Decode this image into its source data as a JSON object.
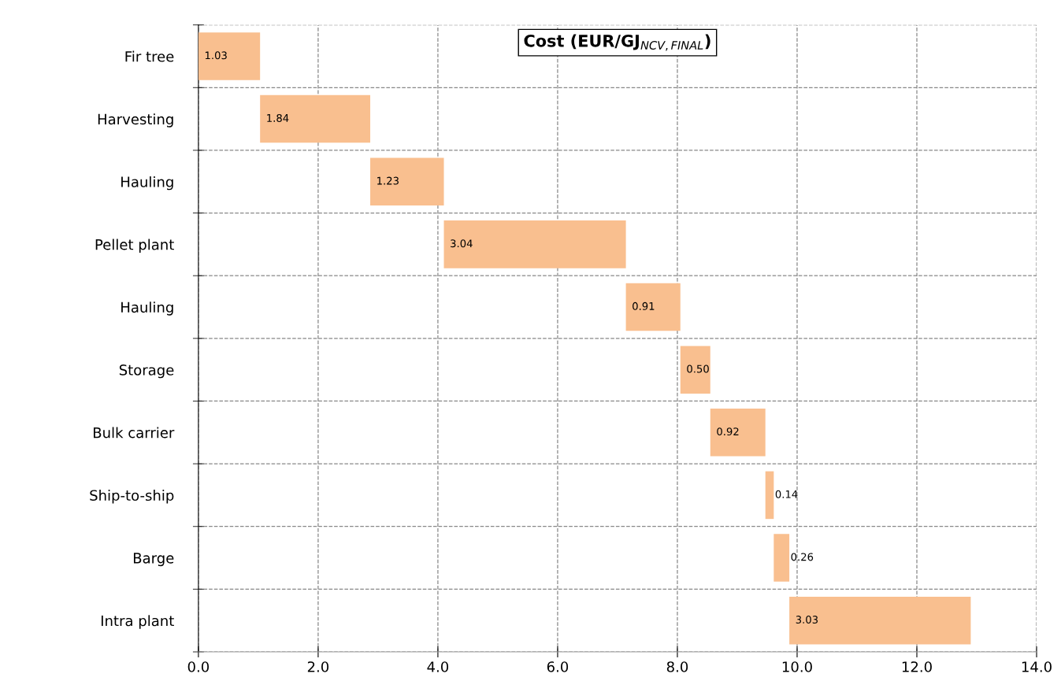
{
  "chart_data": {
    "type": "bar",
    "orientation": "horizontal",
    "title": "Cost (EUR/GJ$_{NCV,FINAL}$)",
    "categories": [
      "Fir tree",
      "Harvesting",
      "Hauling",
      "Pellet plant",
      "Hauling",
      "Storage",
      "Bulk carrier",
      "Ship-to-ship",
      "Barge",
      "Intra plant"
    ],
    "values": [
      1.03,
      1.84,
      1.23,
      3.04,
      0.91,
      0.5,
      0.92,
      0.14,
      0.26,
      3.03
    ],
    "base": [
      0,
      1.03,
      2.87,
      4.1,
      7.14,
      8.05,
      8.55,
      9.47,
      9.61,
      9.87
    ],
    "value_labels": [
      "1.03",
      "1.84",
      "1.23",
      "3.04",
      "0.91",
      "0.50",
      "0.92",
      "0.14",
      "0.26",
      "3.03"
    ],
    "color": "#f9bf8f",
    "xlim": [
      0,
      14
    ],
    "xticks": [
      {
        "value": 0,
        "label": "0.0"
      },
      {
        "value": 2,
        "label": "2.0"
      },
      {
        "value": 4,
        "label": "4.0"
      },
      {
        "value": 6,
        "label": "6.0"
      },
      {
        "value": 8,
        "label": "8.0"
      },
      {
        "value": 10,
        "label": "10.0"
      },
      {
        "value": 12,
        "label": "12.0"
      },
      {
        "value": 14,
        "label": "14.0"
      }
    ],
    "grid": true
  }
}
